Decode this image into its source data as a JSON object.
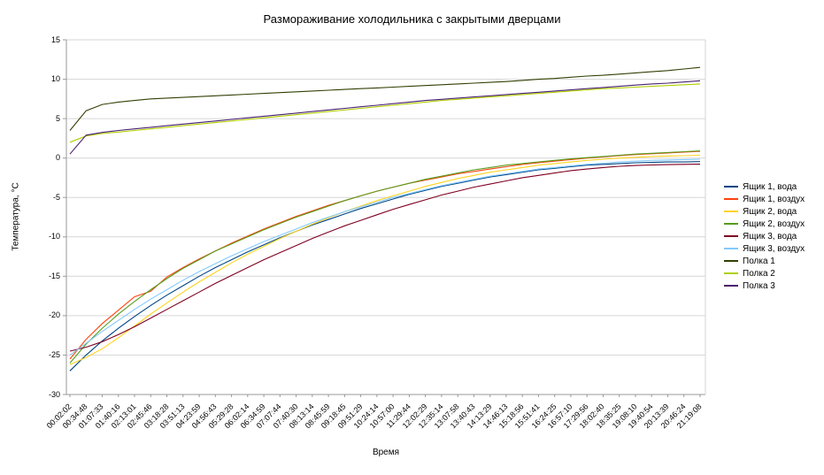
{
  "chart_data": {
    "type": "line",
    "title": "Размораживание холодильника с закрытыми дверцами",
    "xlabel": "Время",
    "ylabel": "Температура, °C",
    "ylim": [
      -30,
      15
    ],
    "y_ticks": [
      15,
      10,
      5,
      0,
      -5,
      -10,
      -15,
      -20,
      -25,
      -30
    ],
    "grid": true,
    "legend_position": "right",
    "categories": [
      "00:02:02",
      "00:34:48",
      "01:07:33",
      "01:40:16",
      "02:13:01",
      "02:45:46",
      "03:18:28",
      "03:51:13",
      "04:23:59",
      "04:56:43",
      "05:29:28",
      "06:02:14",
      "06:34:59",
      "07:07:44",
      "07:40:30",
      "08:13:14",
      "08:45:59",
      "09:18:45",
      "09:51:29",
      "10:24:14",
      "10:57:00",
      "11:29:44",
      "12:02:29",
      "12:35:14",
      "13:07:58",
      "13:40:43",
      "14:13:29",
      "14:46:13",
      "15:18:56",
      "15:51:41",
      "16:24:25",
      "16:57:10",
      "17:29:56",
      "18:02:40",
      "18:35:25",
      "19:08:10",
      "19:40:54",
      "20:13:39",
      "20:46:24",
      "21:19:08"
    ],
    "series": [
      {
        "name": "Ящик 1, вода",
        "color": "#004586",
        "values": [
          -27.0,
          -25.0,
          -23.2,
          -21.6,
          -20.1,
          -18.7,
          -17.4,
          -16.2,
          -15.0,
          -13.9,
          -12.9,
          -11.9,
          -11.0,
          -10.1,
          -9.3,
          -8.5,
          -7.8,
          -7.1,
          -6.4,
          -5.8,
          -5.2,
          -4.6,
          -4.1,
          -3.6,
          -3.2,
          -2.8,
          -2.4,
          -2.1,
          -1.8,
          -1.5,
          -1.3,
          -1.1,
          -0.9,
          -0.8,
          -0.7,
          -0.6,
          -0.55,
          -0.5,
          -0.5,
          -0.45
        ]
      },
      {
        "name": "Ящик 1, воздух",
        "color": "#ff420e",
        "values": [
          -25.5,
          -23.0,
          -21.0,
          -19.3,
          -17.6,
          -16.9,
          -15.1,
          -13.9,
          -12.8,
          -11.8,
          -10.8,
          -9.9,
          -9.0,
          -8.2,
          -7.4,
          -6.7,
          -6.0,
          -5.4,
          -4.8,
          -4.2,
          -3.7,
          -3.2,
          -2.8,
          -2.4,
          -2.0,
          -1.7,
          -1.4,
          -1.1,
          -0.8,
          -0.6,
          -0.4,
          -0.2,
          0.0,
          0.15,
          0.3,
          0.45,
          0.55,
          0.65,
          0.75,
          0.85
        ]
      },
      {
        "name": "Ящик 2, вода",
        "color": "#ffd320",
        "values": [
          -26.2,
          -25.3,
          -24.2,
          -22.8,
          -21.3,
          -19.8,
          -18.4,
          -17.0,
          -15.7,
          -14.5,
          -13.3,
          -12.2,
          -11.2,
          -10.2,
          -9.3,
          -8.4,
          -7.6,
          -6.8,
          -6.1,
          -5.4,
          -4.8,
          -4.2,
          -3.6,
          -3.1,
          -2.6,
          -2.2,
          -1.8,
          -1.5,
          -1.2,
          -0.9,
          -0.7,
          -0.5,
          -0.3,
          -0.15,
          0.0,
          0.1,
          0.2,
          0.25,
          0.3,
          0.35
        ]
      },
      {
        "name": "Ящик 2, воздух",
        "color": "#579d1c",
        "values": [
          -26.0,
          -23.6,
          -21.6,
          -19.8,
          -18.2,
          -16.7,
          -15.3,
          -14.0,
          -12.9,
          -11.8,
          -10.9,
          -10.0,
          -9.1,
          -8.3,
          -7.5,
          -6.8,
          -6.1,
          -5.4,
          -4.8,
          -4.2,
          -3.7,
          -3.2,
          -2.7,
          -2.3,
          -1.9,
          -1.5,
          -1.2,
          -0.9,
          -0.7,
          -0.5,
          -0.3,
          -0.1,
          0.05,
          0.2,
          0.35,
          0.5,
          0.6,
          0.7,
          0.8,
          0.9
        ]
      },
      {
        "name": "Ящик 3, вода",
        "color": "#7e0021",
        "values": [
          -24.5,
          -24.0,
          -23.3,
          -22.4,
          -21.4,
          -20.3,
          -19.2,
          -18.1,
          -17.0,
          -15.9,
          -14.9,
          -13.9,
          -12.9,
          -12.0,
          -11.1,
          -10.2,
          -9.4,
          -8.6,
          -7.9,
          -7.2,
          -6.5,
          -5.9,
          -5.3,
          -4.7,
          -4.2,
          -3.7,
          -3.3,
          -2.9,
          -2.5,
          -2.2,
          -1.9,
          -1.6,
          -1.4,
          -1.2,
          -1.05,
          -0.95,
          -0.88,
          -0.83,
          -0.8,
          -0.78
        ]
      },
      {
        "name": "Ящик 3, воздух",
        "color": "#83caff",
        "values": [
          -25.0,
          -23.5,
          -22.0,
          -20.6,
          -19.2,
          -17.9,
          -16.7,
          -15.5,
          -14.4,
          -13.4,
          -12.4,
          -11.5,
          -10.6,
          -9.8,
          -9.0,
          -8.2,
          -7.5,
          -6.8,
          -6.2,
          -5.6,
          -5.0,
          -4.5,
          -4.0,
          -3.5,
          -3.1,
          -2.7,
          -2.3,
          -2.0,
          -1.7,
          -1.4,
          -1.2,
          -1.0,
          -0.8,
          -0.65,
          -0.5,
          -0.4,
          -0.3,
          -0.25,
          -0.2,
          -0.15
        ]
      },
      {
        "name": "Полка 1",
        "color": "#314004",
        "values": [
          3.5,
          6.0,
          6.8,
          7.1,
          7.3,
          7.5,
          7.6,
          7.7,
          7.8,
          7.9,
          8.0,
          8.1,
          8.2,
          8.3,
          8.4,
          8.5,
          8.6,
          8.7,
          8.8,
          8.9,
          9.0,
          9.1,
          9.2,
          9.3,
          9.4,
          9.5,
          9.6,
          9.7,
          9.85,
          10.0,
          10.1,
          10.25,
          10.4,
          10.5,
          10.65,
          10.8,
          10.95,
          11.1,
          11.3,
          11.5
        ]
      },
      {
        "name": "Полка 2",
        "color": "#aecf00",
        "values": [
          2.0,
          2.8,
          3.1,
          3.3,
          3.5,
          3.7,
          3.9,
          4.1,
          4.3,
          4.5,
          4.7,
          4.9,
          5.1,
          5.3,
          5.5,
          5.7,
          5.9,
          6.1,
          6.3,
          6.5,
          6.7,
          6.9,
          7.1,
          7.3,
          7.45,
          7.6,
          7.75,
          7.9,
          8.05,
          8.2,
          8.35,
          8.5,
          8.65,
          8.8,
          8.9,
          9.0,
          9.1,
          9.2,
          9.3,
          9.4
        ]
      },
      {
        "name": "Полка 3",
        "color": "#4b1f6f",
        "values": [
          0.5,
          2.9,
          3.25,
          3.5,
          3.7,
          3.9,
          4.1,
          4.3,
          4.5,
          4.7,
          4.9,
          5.1,
          5.3,
          5.5,
          5.7,
          5.9,
          6.1,
          6.3,
          6.5,
          6.7,
          6.9,
          7.1,
          7.3,
          7.45,
          7.6,
          7.75,
          7.9,
          8.05,
          8.2,
          8.35,
          8.5,
          8.65,
          8.8,
          8.95,
          9.1,
          9.25,
          9.4,
          9.5,
          9.65,
          9.8
        ]
      }
    ]
  }
}
